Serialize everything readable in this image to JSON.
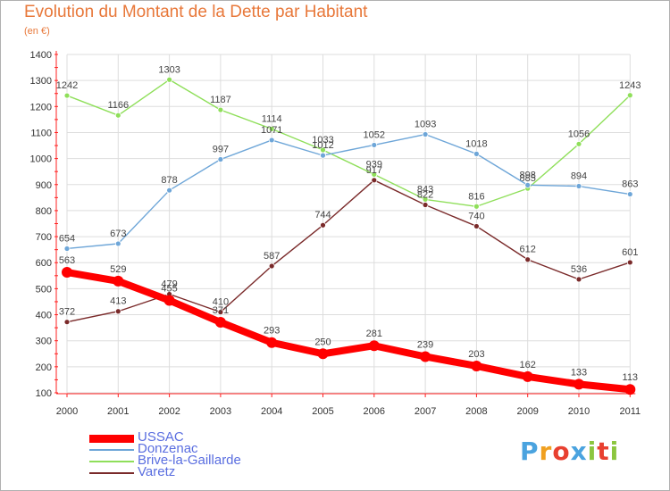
{
  "title": "Evolution du Montant de la Dette par Habitant",
  "unit": "(en €)",
  "logo": {
    "text": "Proxiti",
    "colors": [
      "#4aa3df",
      "#f0a020",
      "#e84030",
      "#4aa3df",
      "#8cc63f",
      "#e84030",
      "#8cc63f"
    ]
  },
  "chart_data": {
    "type": "line",
    "categories": [
      "2000",
      "2001",
      "2002",
      "2003",
      "2004",
      "2005",
      "2006",
      "2007",
      "2008",
      "2009",
      "2010",
      "2011"
    ],
    "ylim": [
      100,
      1400
    ],
    "yticks": [
      "100",
      "200",
      "300",
      "400",
      "500",
      "600",
      "700",
      "800",
      "900",
      "1000",
      "1100",
      "1200",
      "1300",
      "1400"
    ],
    "grid": true,
    "legend_position": "bottom-left",
    "series": [
      {
        "name": "USSAC",
        "color": "#ff0000",
        "values": [
          563,
          529,
          455,
          371,
          293,
          250,
          281,
          239,
          203,
          162,
          133,
          113
        ]
      },
      {
        "name": "Donzenac",
        "color": "#6ea6d8",
        "values": [
          654,
          673,
          878,
          997,
          1071,
          1012,
          1052,
          1093,
          1018,
          898,
          894,
          863
        ]
      },
      {
        "name": "Brive-la-Gaillarde",
        "color": "#8fdf5a",
        "values": [
          1242,
          1166,
          1303,
          1187,
          1114,
          1033,
          939,
          843,
          816,
          885,
          1056,
          1243
        ]
      },
      {
        "name": "Varetz",
        "color": "#7a2a2a",
        "values": [
          372,
          413,
          479,
          410,
          587,
          744,
          917,
          822,
          740,
          612,
          536,
          601
        ]
      }
    ]
  }
}
